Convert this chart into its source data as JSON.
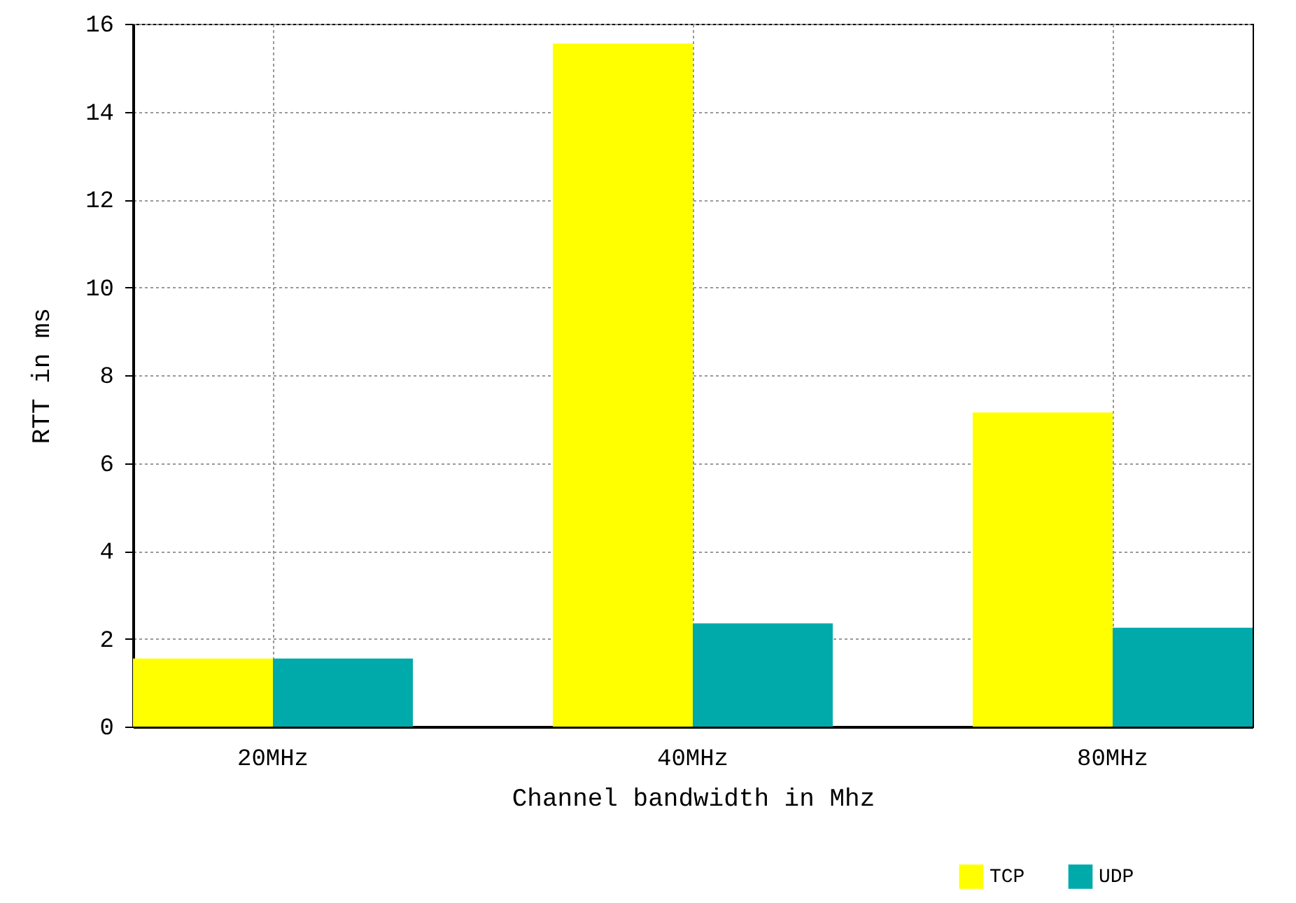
{
  "chart_data": {
    "type": "bar",
    "xlabel": "Channel bandwidth in Mhz",
    "ylabel": "RTT in ms",
    "categories": [
      "20MHz",
      "40MHz",
      "80MHz"
    ],
    "series": [
      {
        "name": "TCP",
        "color": "#ffff00",
        "values": [
          1.55,
          15.55,
          7.15
        ]
      },
      {
        "name": "UDP",
        "color": "#00aaaa",
        "values": [
          1.55,
          2.35,
          2.25
        ]
      }
    ],
    "ylim": [
      0,
      16
    ],
    "yticks": [
      0,
      2,
      4,
      6,
      8,
      10,
      12,
      14,
      16
    ],
    "grid": true,
    "legend": "bottom right"
  }
}
